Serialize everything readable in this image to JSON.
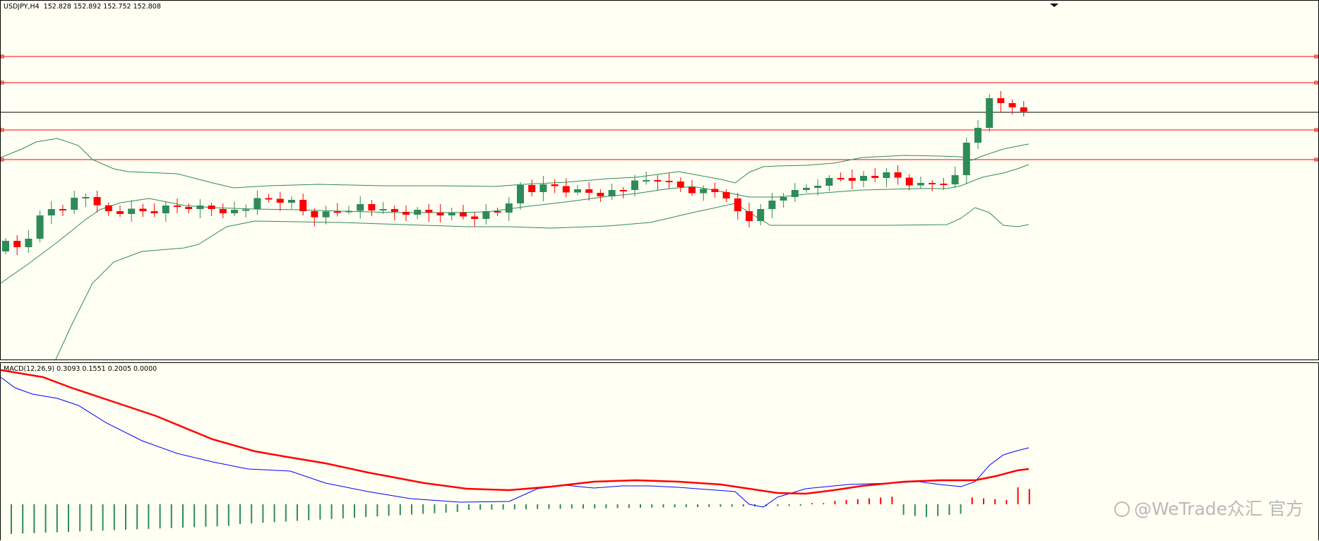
{
  "main_panel": {
    "info_text": "USDJPY,H4  152.828 152.892 152.752 152.808"
  },
  "macd_panel": {
    "info_text": "MACD(12,26,9) 0.3093 0.1551 0.2005 0.0000"
  },
  "watermark": {
    "text": "@WeTrade众汇 官方"
  },
  "colors": {
    "background": "#fffff3",
    "bull": "#2e8b57",
    "bear": "#ff0000",
    "band": "#2e8b57",
    "level_line": "#ff0000",
    "price_line": "#000000",
    "macd_main": "#0000ff",
    "macd_signal": "#ff0000"
  },
  "icons": {
    "shift_marker": "triangle-down-icon",
    "watermark_logo": "wetrade-logo-icon"
  },
  "chart_data": [
    {
      "type": "candlestick",
      "symbol": "USDJPY",
      "timeframe": "H4",
      "open": 152.828,
      "high": 152.892,
      "low": 152.752,
      "close": 152.808,
      "indicators": [
        "Bollinger Bands"
      ],
      "horizontal_levels_count": 4
    },
    {
      "type": "line",
      "indicator": "MACD",
      "params": [
        12,
        26,
        9
      ],
      "values": [
        0.3093,
        0.1551,
        0.2005,
        0.0
      ]
    }
  ]
}
